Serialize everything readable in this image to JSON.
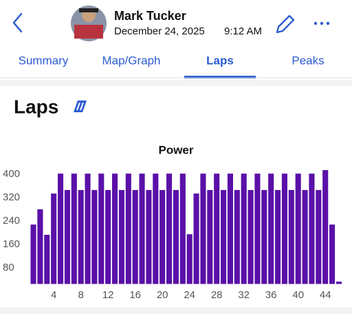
{
  "header": {
    "name": "Mark Tucker",
    "date": "December 24, 2025",
    "time": "9:12 AM"
  },
  "tabs": [
    "Summary",
    "Map/Graph",
    "Laps",
    "Peaks"
  ],
  "active_tab": 2,
  "section": {
    "title": "Laps"
  },
  "chart_data": {
    "type": "bar",
    "title": "Power",
    "color": "#5a10a8",
    "x": [
      1,
      2,
      3,
      4,
      5,
      6,
      7,
      8,
      9,
      10,
      11,
      12,
      13,
      14,
      15,
      16,
      17,
      18,
      19,
      20,
      21,
      22,
      23,
      24,
      25,
      26,
      27,
      28,
      29,
      30,
      31,
      32,
      33,
      34,
      35,
      36,
      37,
      38,
      39,
      40,
      41,
      42,
      43,
      44,
      45,
      46
    ],
    "values": [
      228,
      280,
      193,
      334,
      402,
      346,
      402,
      346,
      402,
      346,
      402,
      346,
      402,
      346,
      402,
      346,
      402,
      346,
      402,
      346,
      402,
      346,
      402,
      195,
      334,
      402,
      346,
      402,
      346,
      402,
      346,
      402,
      346,
      402,
      346,
      402,
      346,
      402,
      346,
      402,
      346,
      402,
      346,
      414,
      228,
      33
    ],
    "xlim": [
      0.5,
      46.5
    ],
    "xticks": [
      4,
      8,
      12,
      16,
      20,
      24,
      28,
      32,
      36,
      40,
      44
    ],
    "ylim": [
      25,
      420
    ],
    "yticks": [
      80,
      160,
      240,
      320,
      400
    ]
  }
}
